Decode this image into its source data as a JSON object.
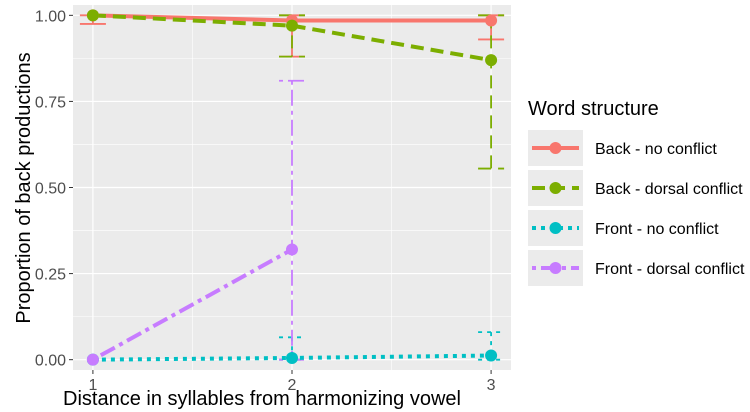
{
  "chart_data": {
    "type": "line",
    "xlabel": "Distance in syllables from harmonizing vowel",
    "ylabel": "Proportion of back productions",
    "x": [
      1,
      2,
      3
    ],
    "x_ticks": [
      "1",
      "2",
      "3"
    ],
    "y_ticks": [
      "0.00",
      "0.25",
      "0.50",
      "0.75",
      "1.00"
    ],
    "ylim": [
      -0.03,
      1.03
    ],
    "xlim": [
      0.9,
      3.1
    ],
    "grid": true,
    "legend": {
      "title": "Word structure",
      "position": "right"
    },
    "series": [
      {
        "name": "Back - no conflict",
        "color": "#F8766D",
        "dash": "solid",
        "values": [
          1.0,
          0.985,
          0.985
        ],
        "error_low": [
          0.975,
          0.88,
          0.93
        ],
        "error_high": [
          1.0,
          1.0,
          1.0
        ]
      },
      {
        "name": "Back - dorsal conflict",
        "color": "#7CAE00",
        "dash": "dashed",
        "values": [
          1.0,
          0.97,
          0.87
        ],
        "error_low": [
          1.0,
          0.88,
          0.555
        ],
        "error_high": [
          1.0,
          1.0,
          1.0
        ]
      },
      {
        "name": "Front - no conflict",
        "color": "#00BFC4",
        "dash": "dotted",
        "values": [
          0.0,
          0.005,
          0.012
        ],
        "error_low": [
          0.0,
          0.0,
          0.0
        ],
        "error_high": [
          0.0,
          0.065,
          0.08
        ]
      },
      {
        "name": "Front - dorsal conflict",
        "color": "#C77CFF",
        "dash": "dotdash",
        "values": [
          0.0,
          0.32,
          null
        ],
        "error_low": [
          0.0,
          0.0,
          null
        ],
        "error_high": [
          0.0,
          0.81,
          null
        ]
      }
    ]
  }
}
